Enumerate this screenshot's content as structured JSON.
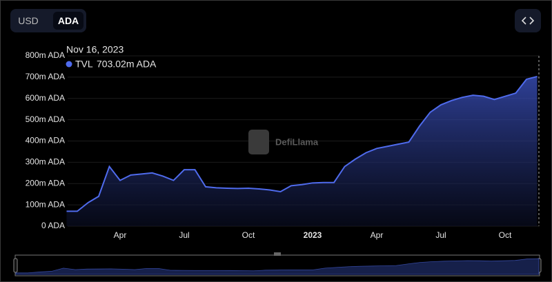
{
  "toggle": {
    "options": [
      "USD",
      "ADA"
    ]
  },
  "watermark": "DefiLlama",
  "chart_data": {
    "type": "area",
    "categories": [
      null,
      null,
      null,
      null,
      null,
      "Apr",
      null,
      null,
      null,
      null,
      null,
      "Jul",
      null,
      null,
      null,
      null,
      null,
      "Oct",
      null,
      null,
      null,
      null,
      null,
      "2023",
      null,
      null,
      null,
      null,
      null,
      "Apr",
      null,
      null,
      null,
      null,
      null,
      "Jul",
      null,
      null,
      null,
      null,
      null,
      "Oct",
      null,
      null,
      null
    ],
    "series": [
      {
        "name": "TVL",
        "color": "#4f6bed",
        "values": [
          70000000,
          70000000,
          110000000,
          140000000,
          280000000,
          215000000,
          240000000,
          245000000,
          250000000,
          235000000,
          215000000,
          265000000,
          265000000,
          185000000,
          180000000,
          178000000,
          177000000,
          178000000,
          175000000,
          170000000,
          162000000,
          190000000,
          195000000,
          203000000,
          205000000,
          205000000,
          280000000,
          315000000,
          345000000,
          365000000,
          375000000,
          385000000,
          395000000,
          470000000,
          535000000,
          570000000,
          590000000,
          605000000,
          615000000,
          610000000,
          595000000,
          610000000,
          625000000,
          690000000,
          703020000
        ],
        "value_labels": [
          null,
          null,
          null,
          null,
          null,
          null,
          null,
          null,
          null,
          null,
          null,
          null,
          null,
          null,
          null,
          null,
          null,
          null,
          null,
          null,
          null,
          null,
          null,
          null,
          null,
          null,
          null,
          null,
          null,
          null,
          null,
          null,
          null,
          null,
          null,
          null,
          null,
          null,
          null,
          null,
          null,
          null,
          null,
          null,
          "703.02m ADA"
        ]
      }
    ],
    "tooltip_date": "Nov 16, 2023",
    "ylim": [
      0,
      800000000
    ],
    "yticks": [
      {
        "value": 0,
        "label": "0 ADA"
      },
      {
        "value": 100000000,
        "label": "100m ADA"
      },
      {
        "value": 200000000,
        "label": "200m ADA"
      },
      {
        "value": 300000000,
        "label": "300m ADA"
      },
      {
        "value": 400000000,
        "label": "400m ADA"
      },
      {
        "value": 500000000,
        "label": "500m ADA"
      },
      {
        "value": 600000000,
        "label": "600m ADA"
      },
      {
        "value": 700000000,
        "label": "700m ADA"
      },
      {
        "value": 800000000,
        "label": "800m ADA"
      }
    ],
    "grid": true
  }
}
